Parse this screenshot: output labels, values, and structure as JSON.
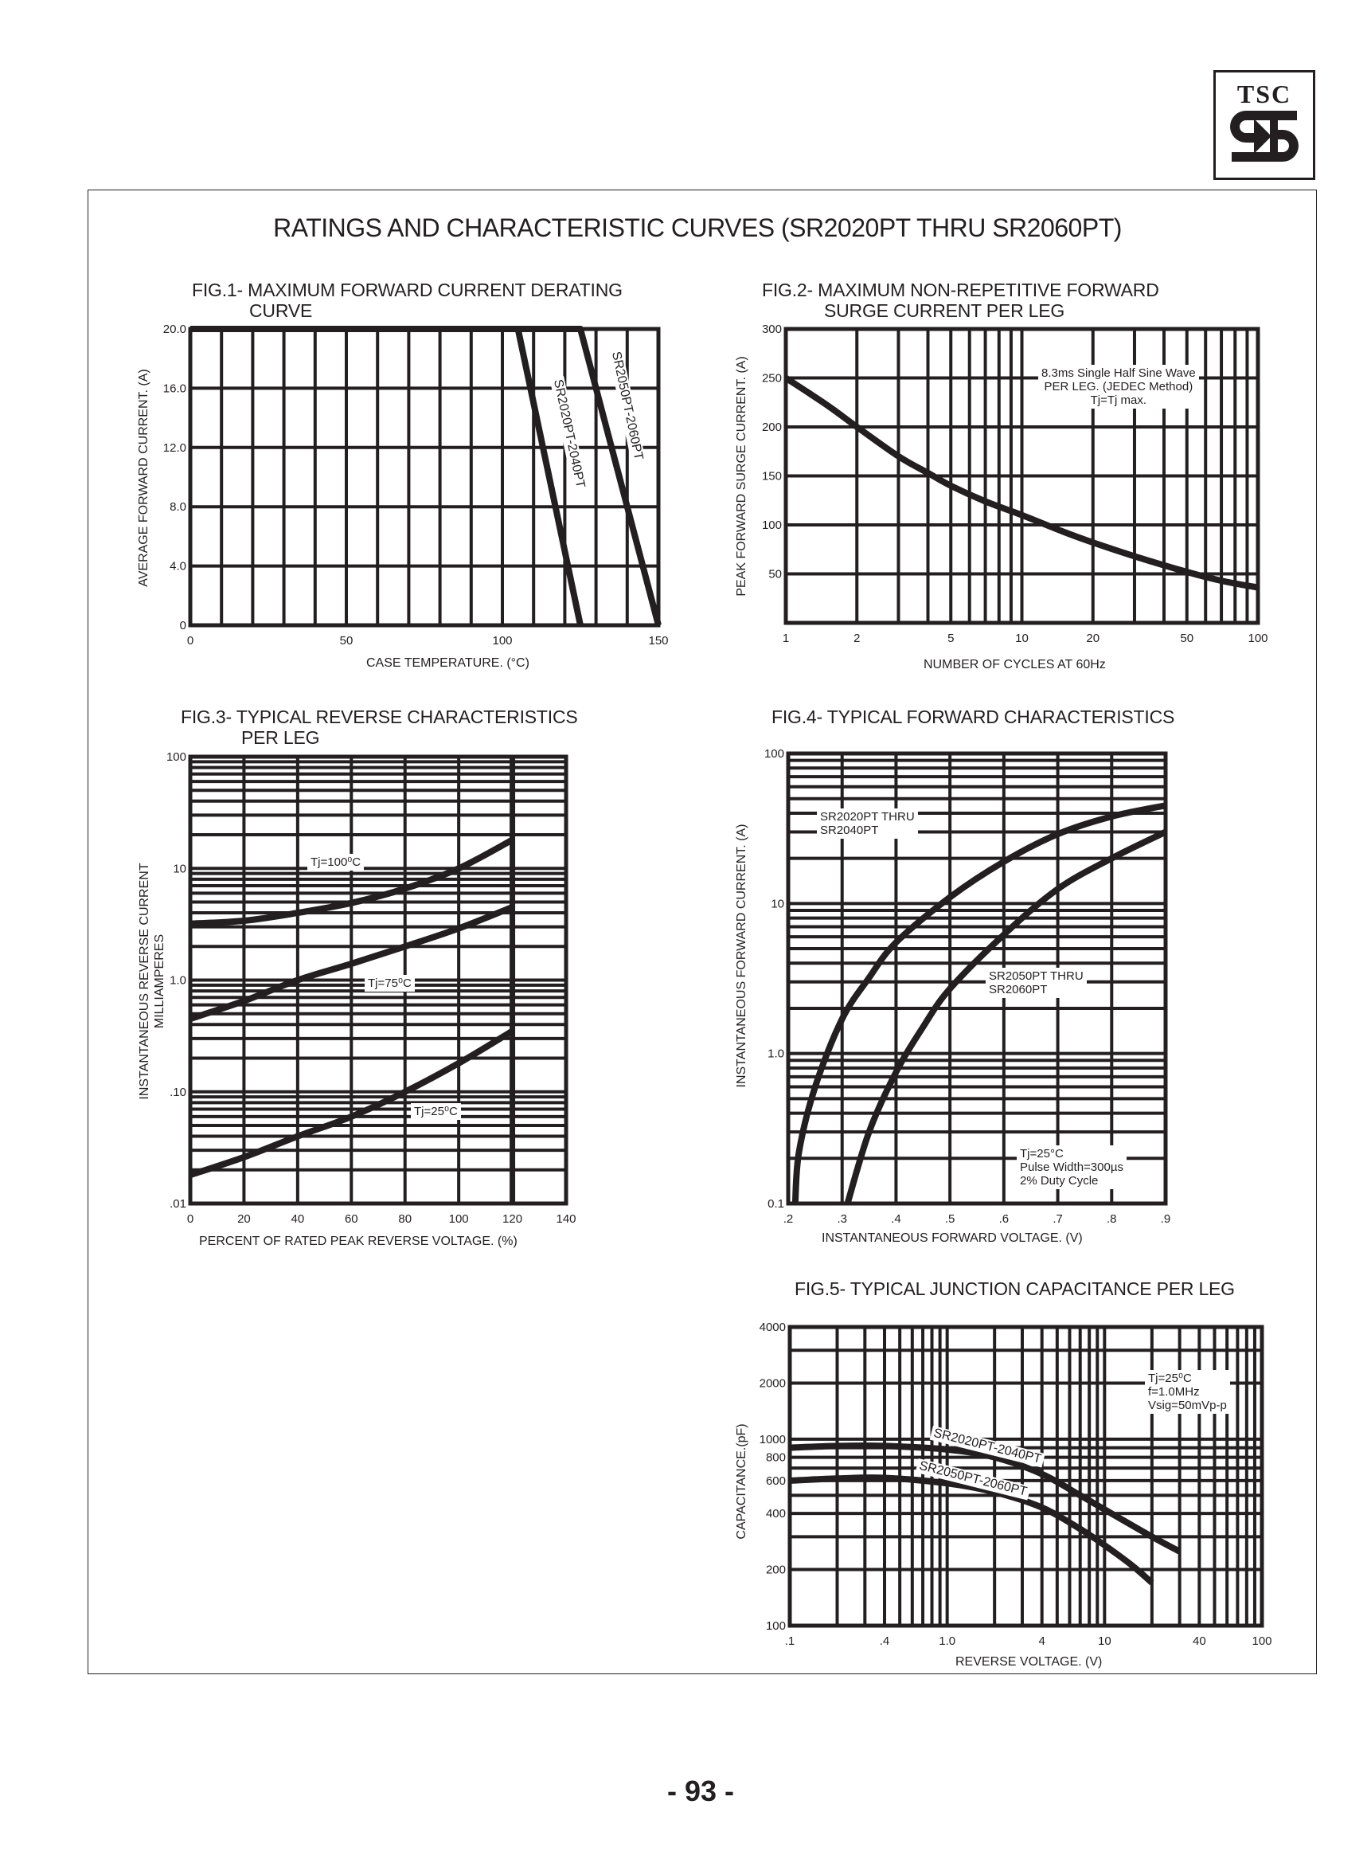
{
  "logo": {
    "text": "TSC"
  },
  "page_title": "RATINGS AND CHARACTERISTIC CURVES (SR2020PT THRU SR2060PT)",
  "page_number": "- 93 -",
  "colors": {
    "ink": "#231f20",
    "background": "#ffffff"
  },
  "chart_data": [
    {
      "type": "line",
      "title": [
        "FIG.1- MAXIMUM FORWARD CURRENT DERATING",
        "CURVE"
      ],
      "xlabel": "CASE TEMPERATURE. (°C)",
      "ylabel": "AVERAGE FORWARD CURRENT. (A)",
      "xscale": "linear",
      "yscale": "linear",
      "xlim": [
        0,
        150
      ],
      "ylim": [
        0,
        20
      ],
      "x_ticks": [
        0,
        50,
        100,
        150
      ],
      "x_tick_labels": [
        "0",
        "50",
        "100",
        "150"
      ],
      "y_ticks": [
        0,
        4,
        8,
        12,
        16,
        20
      ],
      "y_tick_labels": [
        "0",
        "4.0",
        "8.0",
        "12.0",
        "16.0",
        "20.0"
      ],
      "grid_x": [
        0,
        10,
        20,
        30,
        40,
        50,
        60,
        70,
        80,
        90,
        100,
        110,
        120,
        130,
        140,
        150
      ],
      "grid_y": [
        0,
        4,
        8,
        12,
        16,
        20
      ],
      "grid": true,
      "series": [
        {
          "name": "SR2020PT-2040PT",
          "x": [
            0,
            105,
            125
          ],
          "y": [
            20,
            20,
            0
          ]
        },
        {
          "name": "SR2050PT-2060PT",
          "x": [
            0,
            125,
            150
          ],
          "y": [
            20,
            20,
            0
          ]
        }
      ],
      "annotations": []
    },
    {
      "type": "line",
      "title": [
        "FIG.2- MAXIMUM NON-REPETITIVE FORWARD",
        "SURGE CURRENT PER LEG"
      ],
      "xlabel": "NUMBER OF CYCLES AT 60Hz",
      "ylabel": "PEAK FORWARD SURGE CURRENT. (A)",
      "xscale": "log",
      "yscale": "linear",
      "xlim": [
        1,
        100
      ],
      "ylim": [
        0,
        300
      ],
      "x_ticks": [
        1,
        2,
        5,
        10,
        20,
        50,
        100
      ],
      "x_tick_labels": [
        "1",
        "2",
        "5",
        "10",
        "20",
        "50",
        "100"
      ],
      "y_ticks": [
        50,
        100,
        150,
        200,
        250,
        300
      ],
      "y_tick_labels": [
        "50",
        "100",
        "150",
        "200",
        "250",
        "300"
      ],
      "grid_y": [
        0,
        50,
        100,
        150,
        200,
        250,
        300
      ],
      "grid": true,
      "series": [
        {
          "x": [
            1,
            1.5,
            2,
            3,
            4,
            5,
            7,
            10,
            15,
            20,
            30,
            50,
            70,
            100
          ],
          "y": [
            250,
            222,
            200,
            170,
            153,
            140,
            124,
            110,
            93,
            82,
            68,
            52,
            43,
            36
          ]
        }
      ],
      "annotations": [
        [
          "8.3ms Single Half Sine Wave",
          "PER LEG. (JEDEC Method)",
          "Tj=Tj max."
        ]
      ]
    },
    {
      "type": "line",
      "title": [
        "FIG.3- TYPICAL REVERSE CHARACTERISTICS",
        "PER LEG"
      ],
      "xlabel": "PERCENT OF RATED PEAK REVERSE VOLTAGE. (%)",
      "ylabel": [
        "INSTANTANEOUS REVERSE CURRENT",
        "MILLIAMPERES"
      ],
      "xscale": "linear",
      "yscale": "log",
      "xlim": [
        0,
        140
      ],
      "ylim": [
        0.01,
        100
      ],
      "x_ticks": [
        0,
        20,
        40,
        60,
        80,
        100,
        120,
        140
      ],
      "x_tick_labels": [
        "0",
        "20",
        "40",
        "60",
        "80",
        "100",
        "120",
        "140"
      ],
      "y_ticks": [
        0.01,
        0.1,
        1,
        10,
        100
      ],
      "y_tick_labels": [
        ".01",
        ".10",
        "1.0",
        "10",
        "100"
      ],
      "grid_x": [
        0,
        20,
        40,
        60,
        80,
        100,
        120,
        140
      ],
      "emphasized_x": 120,
      "grid": true,
      "series": [
        {
          "name": "Tj=100⁰C",
          "x": [
            0,
            20,
            40,
            60,
            80,
            100,
            120
          ],
          "y": [
            3.2,
            3.4,
            4.0,
            4.9,
            6.6,
            10,
            18
          ]
        },
        {
          "name": "Tj=75⁰C",
          "x": [
            0,
            20,
            40,
            60,
            80,
            100,
            120
          ],
          "y": [
            0.45,
            0.65,
            1.0,
            1.4,
            2.0,
            2.9,
            4.5
          ]
        },
        {
          "name": "Tj=25⁰C",
          "x": [
            0,
            20,
            40,
            60,
            80,
            100,
            120
          ],
          "y": [
            0.018,
            0.026,
            0.04,
            0.06,
            0.1,
            0.18,
            0.35
          ]
        }
      ],
      "annotations": []
    },
    {
      "type": "line",
      "title": [
        "FIG.4- TYPICAL FORWARD CHARACTERISTICS"
      ],
      "xlabel": "INSTANTANEOUS FORWARD VOLTAGE. (V)",
      "ylabel": "INSTANTANEOUS FORWARD CURRENT. (A)",
      "xscale": "linear",
      "yscale": "log",
      "xlim": [
        0.2,
        0.9
      ],
      "ylim": [
        0.1,
        100
      ],
      "x_ticks": [
        0.2,
        0.3,
        0.4,
        0.5,
        0.6,
        0.7,
        0.8,
        0.9
      ],
      "x_tick_labels": [
        ".2",
        ".3",
        ".4",
        ".5",
        ".6",
        ".7",
        ".8",
        ".9"
      ],
      "y_ticks": [
        0.1,
        1,
        10,
        100
      ],
      "y_tick_labels": [
        "0.1",
        "1.0",
        "10",
        "100"
      ],
      "grid_x": [
        0.2,
        0.3,
        0.4,
        0.5,
        0.6,
        0.7,
        0.8,
        0.9
      ],
      "grid": true,
      "series": [
        {
          "name": "SR2020PT THRU SR2040PT",
          "x": [
            0.213,
            0.22,
            0.25,
            0.3,
            0.35,
            0.4,
            0.5,
            0.6,
            0.7,
            0.8,
            0.9
          ],
          "y": [
            0.1,
            0.22,
            0.6,
            1.7,
            3.2,
            5.5,
            11,
            19,
            29,
            38,
            45
          ]
        },
        {
          "name": "SR2050PT THRU SR2060PT",
          "x": [
            0.31,
            0.35,
            0.4,
            0.45,
            0.5,
            0.6,
            0.7,
            0.8,
            0.9
          ],
          "y": [
            0.1,
            0.3,
            0.75,
            1.5,
            2.7,
            6.2,
            12.5,
            20,
            30
          ]
        }
      ],
      "annotations": [
        [
          "SR2020PT THRU",
          "SR2040PT"
        ],
        [
          "SR2050PT THRU",
          "SR2060PT"
        ],
        [
          "Tj=25°C",
          "Pulse Width=300µs",
          "2% Duty Cycle"
        ]
      ]
    },
    {
      "type": "line",
      "title": [
        "FIG.5- TYPICAL JUNCTION CAPACITANCE PER LEG"
      ],
      "xlabel": "REVERSE VOLTAGE. (V)",
      "ylabel": "CAPACITANCE.(pF)",
      "xscale": "log",
      "yscale": "log",
      "xlim": [
        0.1,
        100
      ],
      "ylim": [
        100,
        4000
      ],
      "x_ticks": [
        0.1,
        0.4,
        1,
        4,
        10,
        40,
        100
      ],
      "x_tick_labels": [
        ".1",
        ".4",
        "1.0",
        "4",
        "10",
        "40",
        "100"
      ],
      "y_ticks": [
        100,
        200,
        400,
        600,
        800,
        1000,
        2000,
        4000
      ],
      "y_tick_labels": [
        "100",
        "200",
        "400",
        "600",
        "800",
        "1000",
        "2000",
        "4000"
      ],
      "grid": true,
      "series": [
        {
          "name": "SR2020PT-2040PT",
          "x": [
            0.1,
            0.2,
            0.4,
            1,
            2,
            4,
            7,
            10,
            20,
            30
          ],
          "y": [
            900,
            920,
            920,
            880,
            800,
            650,
            500,
            420,
            300,
            250
          ]
        },
        {
          "name": "SR2050PT-2060PT",
          "x": [
            0.1,
            0.2,
            0.4,
            1,
            2,
            4,
            7,
            10,
            15,
            20
          ],
          "y": [
            600,
            615,
            620,
            580,
            520,
            430,
            330,
            270,
            210,
            170
          ]
        }
      ],
      "annotations": [
        [
          "Tj=25⁰C",
          "f=1.0MHz",
          "Vsig=50mVp-p"
        ]
      ]
    }
  ]
}
